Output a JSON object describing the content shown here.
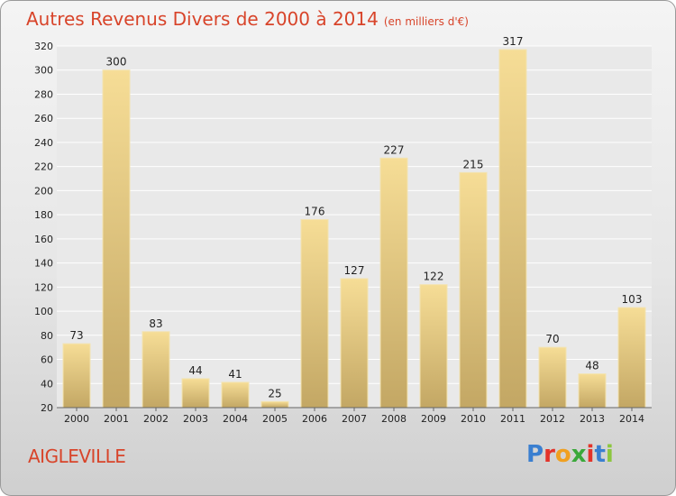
{
  "header": {
    "title": "Autres Revenus Divers de 2000 à 2014",
    "subtitle": "(en milliers d'€)"
  },
  "footer": {
    "city": "AIGLEVILLE",
    "logo": [
      "P",
      "r",
      "o",
      "x",
      "i",
      "t",
      "i"
    ]
  },
  "colors": {
    "title": "#d8442a",
    "bar_light": "#f6dd96",
    "bar_dark": "#c3a764",
    "logo": [
      "#3a7fd0",
      "#e3332a",
      "#f0a020",
      "#3aa83a",
      "#e3332a",
      "#3a7fd0",
      "#8cc63f"
    ]
  },
  "chart_data": {
    "type": "bar",
    "title": "Autres Revenus Divers de 2000 à 2014",
    "subtitle": "(en milliers d'€)",
    "categories": [
      "2000",
      "2001",
      "2002",
      "2003",
      "2004",
      "2005",
      "2006",
      "2007",
      "2008",
      "2009",
      "2010",
      "2011",
      "2012",
      "2013",
      "2014"
    ],
    "values": [
      73,
      300,
      83,
      44,
      41,
      25,
      176,
      127,
      227,
      122,
      215,
      317,
      70,
      48,
      103
    ],
    "ylim": [
      20,
      320
    ],
    "yticks": [
      20,
      40,
      60,
      80,
      100,
      120,
      140,
      160,
      180,
      200,
      220,
      240,
      260,
      280,
      300,
      320
    ],
    "grid": true,
    "data_labels": true
  }
}
